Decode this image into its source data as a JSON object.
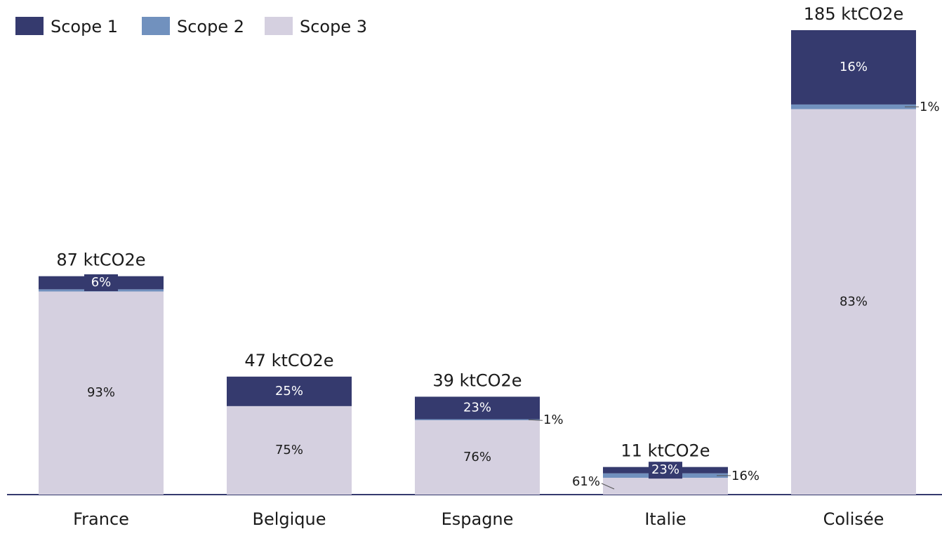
{
  "chart_data": {
    "type": "stacked-bar",
    "categories": [
      "France",
      "Belgique",
      "Espagne",
      "Italie",
      "Colisée"
    ],
    "series": [
      {
        "name": "Scope 1",
        "color": "#353a6e",
        "values": [
          6,
          25,
          23,
          23,
          16
        ],
        "value_labels": [
          "6%",
          "25%",
          "23%",
          "23%",
          "16%"
        ]
      },
      {
        "name": "Scope 2",
        "color": "#7191be",
        "values": [
          1,
          0,
          1,
          16,
          1
        ],
        "value_labels": [
          null,
          null,
          "1%",
          "16%",
          "1%"
        ]
      },
      {
        "name": "Scope 3",
        "color": "#d5d0e0",
        "values": [
          93,
          75,
          76,
          61,
          83
        ],
        "value_labels": [
          "93%",
          "75%",
          "76%",
          "61%",
          "83%"
        ]
      }
    ],
    "totals": {
      "values": [
        87,
        47,
        39,
        11,
        185
      ],
      "value_labels": [
        "87 ktCO2e",
        "47 ktCO2e",
        "39 ktCO2e",
        "11 ktCO2e",
        "185 ktCO2e"
      ]
    },
    "legend": "top-left"
  }
}
